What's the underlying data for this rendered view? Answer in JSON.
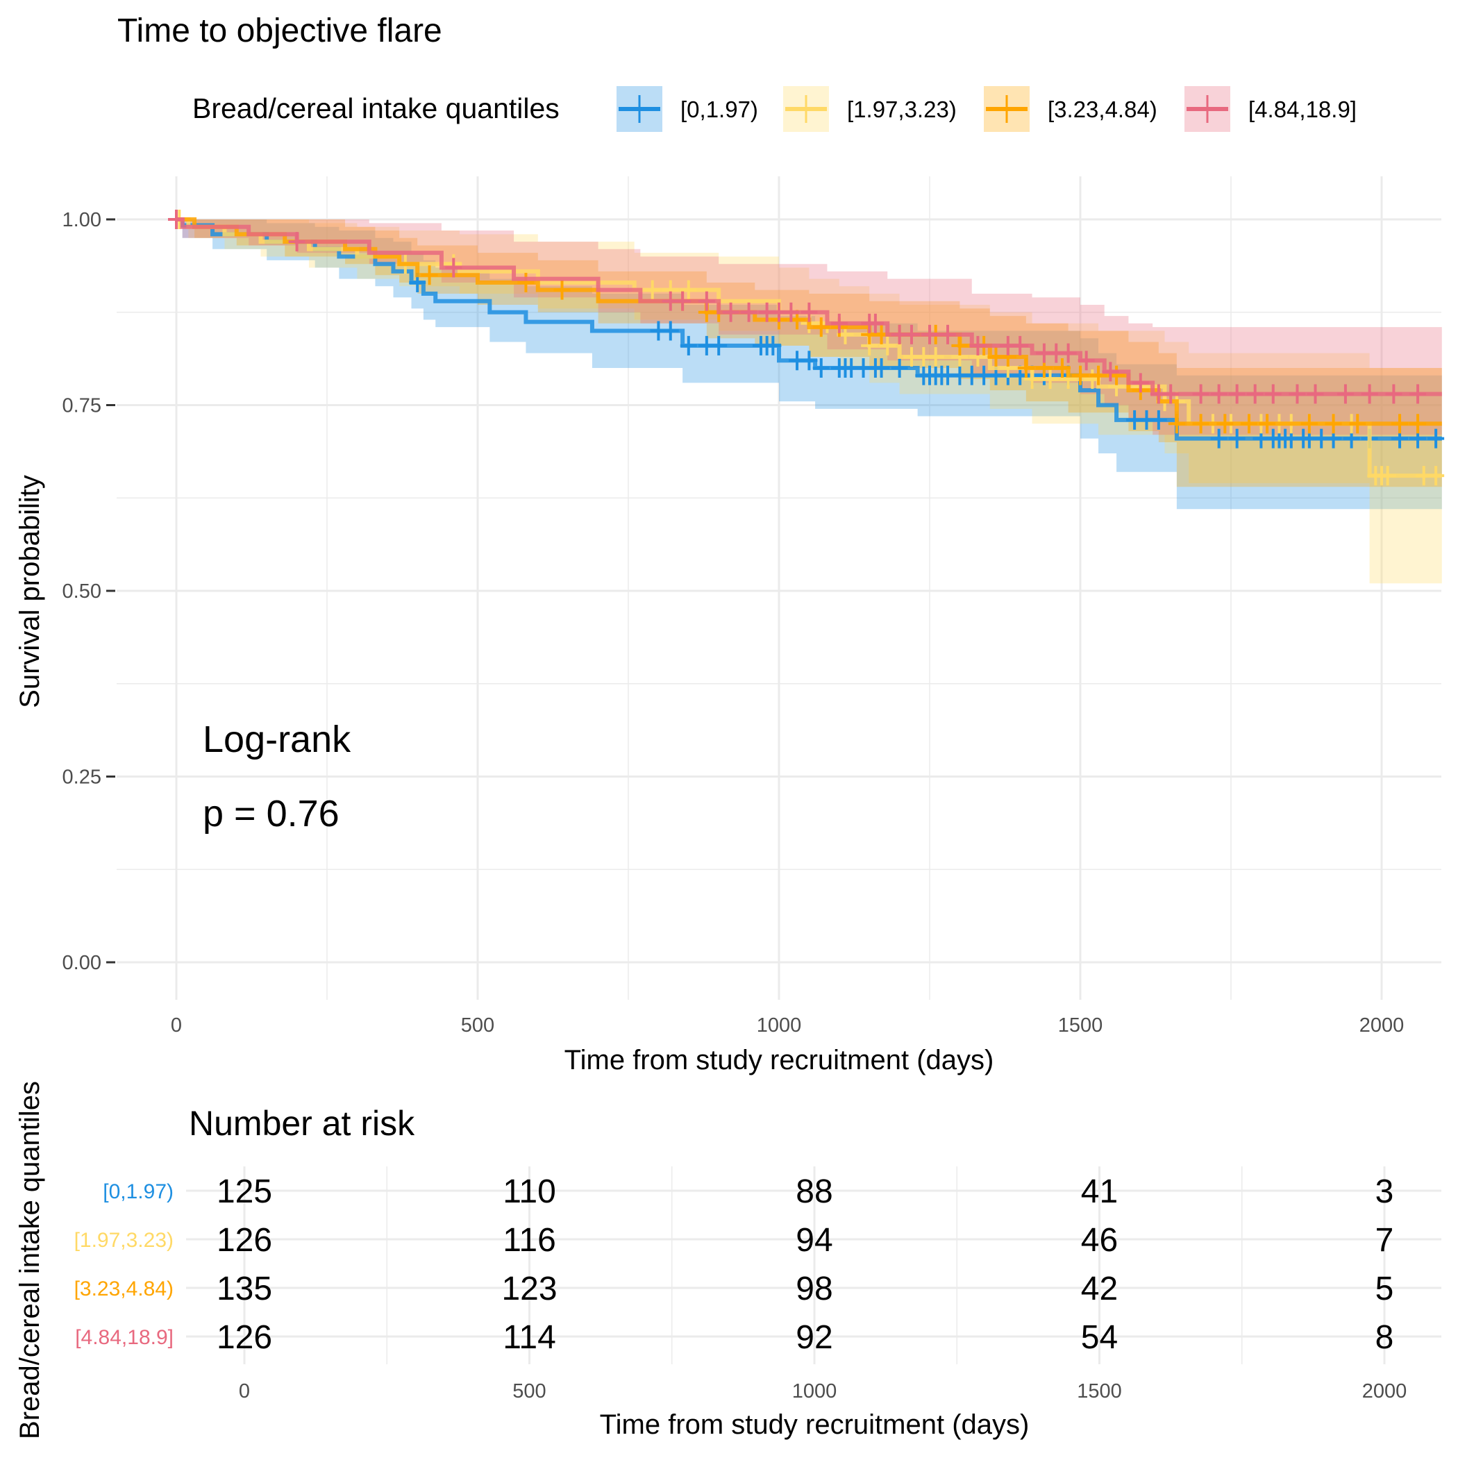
{
  "chart_data": [
    {
      "type": "line",
      "subtype": "kaplan-meier survival curve with confidence bands and censor marks",
      "title": "Time to objective flare",
      "xlabel": "Time from study recruitment (days)",
      "ylabel": "Survival probability",
      "xlim": [
        -100,
        2100
      ],
      "ylim": [
        -0.05,
        1.057
      ],
      "xticks": [
        0,
        500,
        1000,
        1500,
        2000
      ],
      "xtick_labels": [
        "0",
        "500",
        "1000",
        "1500",
        "2000"
      ],
      "yticks": [
        0,
        0.25,
        0.5,
        0.75,
        1
      ],
      "ytick_labels": [
        "0.00",
        "0.25",
        "0.50",
        "0.75",
        "1.00"
      ],
      "grid": true,
      "legend": {
        "title": "Bread/cereal intake quantiles",
        "placement": "top"
      },
      "annotation": {
        "line1": "Log-rank",
        "line2": "p = 0.76"
      },
      "series": [
        {
          "name": "[0,1.97)",
          "color": "#1E8FE1",
          "steps": [
            [
              0,
              1
            ],
            [
              10,
              0.992
            ],
            [
              60,
              0.98
            ],
            [
              150,
              0.97
            ],
            [
              230,
              0.96
            ],
            [
              270,
              0.95
            ],
            [
              330,
              0.94
            ],
            [
              360,
              0.93
            ],
            [
              390,
              0.915
            ],
            [
              410,
              0.9
            ],
            [
              430,
              0.89
            ],
            [
              520,
              0.875
            ],
            [
              580,
              0.862
            ],
            [
              690,
              0.85
            ],
            [
              840,
              0.83
            ],
            [
              1000,
              0.81
            ],
            [
              1060,
              0.8
            ],
            [
              1230,
              0.79
            ],
            [
              1500,
              0.77
            ],
            [
              1530,
              0.75
            ],
            [
              1560,
              0.73
            ],
            [
              1660,
              0.705
            ]
          ],
          "lower": [
            1,
            0.975,
            0.96,
            0.945,
            0.935,
            0.92,
            0.91,
            0.895,
            0.88,
            0.865,
            0.855,
            0.835,
            0.82,
            0.8,
            0.78,
            0.755,
            0.745,
            0.735,
            0.705,
            0.685,
            0.66,
            0.61
          ],
          "upper": [
            1,
            1,
            1,
            0.995,
            0.99,
            0.985,
            0.975,
            0.97,
            0.955,
            0.945,
            0.935,
            0.92,
            0.91,
            0.9,
            0.885,
            0.87,
            0.86,
            0.85,
            0.84,
            0.82,
            0.805,
            0.79
          ],
          "censored": [
            400,
            800,
            820,
            850,
            880,
            900,
            970,
            980,
            990,
            1030,
            1050,
            1070,
            1100,
            1110,
            1120,
            1140,
            1160,
            1170,
            1200,
            1240,
            1250,
            1260,
            1270,
            1280,
            1300,
            1320,
            1340,
            1360,
            1380,
            1400,
            1420,
            1440,
            1480,
            1590,
            1610,
            1630,
            1730,
            1760,
            1800,
            1820,
            1830,
            1840,
            1850,
            1870,
            1880,
            1900,
            1920,
            1950,
            1980,
            2030,
            2060,
            2090
          ]
        },
        {
          "name": "[1.97,3.23)",
          "color": "#FFD966",
          "steps": [
            [
              0,
              1
            ],
            [
              20,
              0.99
            ],
            [
              80,
              0.98
            ],
            [
              140,
              0.97
            ],
            [
              220,
              0.96
            ],
            [
              300,
              0.95
            ],
            [
              370,
              0.94
            ],
            [
              470,
              0.93
            ],
            [
              600,
              0.915
            ],
            [
              760,
              0.905
            ],
            [
              900,
              0.89
            ],
            [
              1000,
              0.875
            ],
            [
              1050,
              0.86
            ],
            [
              1100,
              0.845
            ],
            [
              1150,
              0.83
            ],
            [
              1200,
              0.815
            ],
            [
              1350,
              0.8
            ],
            [
              1420,
              0.785
            ],
            [
              1530,
              0.775
            ],
            [
              1640,
              0.755
            ],
            [
              1680,
              0.725
            ],
            [
              1980,
              0.655
            ]
          ],
          "lower": [
            1,
            0.975,
            0.96,
            0.95,
            0.935,
            0.92,
            0.91,
            0.9,
            0.88,
            0.865,
            0.85,
            0.83,
            0.815,
            0.8,
            0.78,
            0.765,
            0.745,
            0.725,
            0.71,
            0.685,
            0.645,
            0.51
          ],
          "upper": [
            1,
            1,
            1,
            1,
            0.995,
            0.99,
            0.985,
            0.98,
            0.97,
            0.955,
            0.95,
            0.935,
            0.92,
            0.91,
            0.9,
            0.885,
            0.875,
            0.86,
            0.85,
            0.835,
            0.82,
            0.8
          ],
          "censored": [
            5,
            380,
            460,
            790,
            820,
            850,
            1000,
            1050,
            1080,
            1110,
            1150,
            1180,
            1220,
            1240,
            1260,
            1300,
            1330,
            1380,
            1420,
            1450,
            1480,
            1520,
            1560,
            1600,
            1640,
            1660,
            1720,
            1750,
            1780,
            1800,
            1830,
            1850,
            1880,
            1920,
            1950,
            1990,
            2000,
            2010,
            2070,
            2090
          ]
        },
        {
          "name": "[3.23,4.84)",
          "color": "#FFA500",
          "steps": [
            [
              0,
              1
            ],
            [
              30,
              0.99
            ],
            [
              100,
              0.98
            ],
            [
              180,
              0.97
            ],
            [
              280,
              0.96
            ],
            [
              330,
              0.95
            ],
            [
              370,
              0.94
            ],
            [
              400,
              0.925
            ],
            [
              500,
              0.915
            ],
            [
              600,
              0.905
            ],
            [
              700,
              0.89
            ],
            [
              880,
              0.875
            ],
            [
              960,
              0.865
            ],
            [
              1050,
              0.855
            ],
            [
              1150,
              0.845
            ],
            [
              1300,
              0.83
            ],
            [
              1350,
              0.815
            ],
            [
              1410,
              0.8
            ],
            [
              1480,
              0.79
            ],
            [
              1580,
              0.77
            ],
            [
              1630,
              0.755
            ],
            [
              1660,
              0.725
            ]
          ],
          "lower": [
            1,
            0.975,
            0.965,
            0.95,
            0.94,
            0.925,
            0.915,
            0.9,
            0.885,
            0.875,
            0.86,
            0.84,
            0.83,
            0.815,
            0.8,
            0.785,
            0.77,
            0.755,
            0.74,
            0.715,
            0.7,
            0.64
          ],
          "upper": [
            1,
            1,
            1,
            1,
            0.99,
            0.985,
            0.975,
            0.965,
            0.955,
            0.945,
            0.93,
            0.915,
            0.905,
            0.9,
            0.89,
            0.88,
            0.87,
            0.86,
            0.85,
            0.835,
            0.82,
            0.8
          ],
          "censored": [
            420,
            580,
            640,
            840,
            880,
            900,
            1000,
            1030,
            1070,
            1100,
            1150,
            1170,
            1200,
            1260,
            1300,
            1340,
            1360,
            1380,
            1410,
            1440,
            1470,
            1500,
            1530,
            1560,
            1600,
            1660,
            1700,
            1740,
            1780,
            1810,
            1880,
            1920,
            1960,
            2030,
            2060
          ]
        },
        {
          "name": "[4.84,18.9]",
          "color": "#E8697F",
          "steps": [
            [
              0,
              1
            ],
            [
              10,
              0.99
            ],
            [
              120,
              0.98
            ],
            [
              200,
              0.97
            ],
            [
              320,
              0.955
            ],
            [
              440,
              0.935
            ],
            [
              560,
              0.92
            ],
            [
              700,
              0.905
            ],
            [
              770,
              0.89
            ],
            [
              900,
              0.875
            ],
            [
              1080,
              0.86
            ],
            [
              1180,
              0.845
            ],
            [
              1320,
              0.83
            ],
            [
              1420,
              0.82
            ],
            [
              1500,
              0.81
            ],
            [
              1540,
              0.795
            ],
            [
              1580,
              0.78
            ],
            [
              1620,
              0.765
            ]
          ],
          "lower": [
            1,
            0.975,
            0.965,
            0.955,
            0.94,
            0.915,
            0.895,
            0.875,
            0.86,
            0.845,
            0.825,
            0.81,
            0.79,
            0.78,
            0.765,
            0.75,
            0.73,
            0.71
          ],
          "upper": [
            1,
            1,
            1,
            1,
            0.995,
            0.985,
            0.97,
            0.96,
            0.95,
            0.94,
            0.93,
            0.92,
            0.9,
            0.895,
            0.885,
            0.87,
            0.86,
            0.855
          ],
          "censored": [
            0,
            200,
            460,
            820,
            840,
            880,
            920,
            950,
            980,
            1000,
            1020,
            1050,
            1100,
            1150,
            1160,
            1200,
            1220,
            1250,
            1280,
            1330,
            1380,
            1400,
            1440,
            1460,
            1480,
            1510,
            1550,
            1600,
            1630,
            1650,
            1700,
            1730,
            1760,
            1790,
            1820,
            1860,
            1890,
            1940,
            1980,
            2020,
            2060
          ]
        }
      ]
    },
    {
      "type": "table",
      "title": "Number at risk",
      "xlabel": "Time from study recruitment (days)",
      "ylabel": "Bread/cereal intake quantiles",
      "xlim": [
        -100,
        2100
      ],
      "xticks": [
        0,
        500,
        1000,
        1500,
        2000
      ],
      "xtick_labels": [
        "0",
        "500",
        "1000",
        "1500",
        "2000"
      ],
      "rows": [
        {
          "name": "[0,1.97)",
          "color": "#1E8FE1",
          "values": [
            "125",
            "110",
            "88",
            "41",
            "3"
          ]
        },
        {
          "name": "[1.97,3.23)",
          "color": "#FFD966",
          "values": [
            "126",
            "116",
            "94",
            "46",
            "7"
          ]
        },
        {
          "name": "[3.23,4.84)",
          "color": "#FFA500",
          "values": [
            "135",
            "123",
            "98",
            "42",
            "5"
          ]
        },
        {
          "name": "[4.84,18.9]",
          "color": "#E8697F",
          "values": [
            "126",
            "114",
            "92",
            "54",
            "8"
          ]
        }
      ]
    }
  ]
}
